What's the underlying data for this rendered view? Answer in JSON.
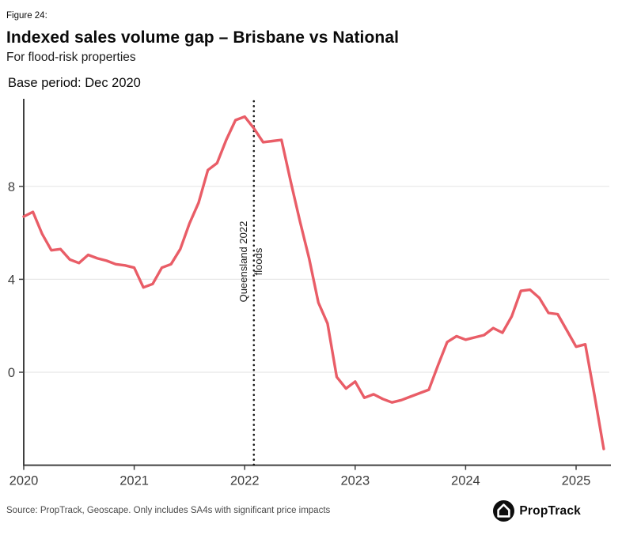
{
  "header": {
    "figure_label": "Figure 24:",
    "title": "Indexed sales volume gap – Brisbane vs National",
    "subtitle": "For flood-risk properties",
    "base_period": "Base period: Dec 2020"
  },
  "chart_data": {
    "type": "line",
    "title": "Indexed sales volume gap – Brisbane vs National",
    "subtitle": "For flood-risk properties",
    "note": "Base period: Dec 2020",
    "frequency": "monthly",
    "start_month": "2020-01",
    "end_month": "2025-04",
    "series": [
      {
        "name": "Brisbane vs National gap (flood-risk properties)",
        "color": "#e95d67",
        "values": [
          6.7,
          6.9,
          5.95,
          5.25,
          5.3,
          4.85,
          4.7,
          5.05,
          4.9,
          4.8,
          4.65,
          4.6,
          4.5,
          3.65,
          3.8,
          4.5,
          4.65,
          5.3,
          6.4,
          7.3,
          8.7,
          9.0,
          10.0,
          10.85,
          11.0,
          10.5,
          9.9,
          9.95,
          10.0,
          8.2,
          6.5,
          4.9,
          3.0,
          2.1,
          -0.2,
          -0.7,
          -0.4,
          -1.1,
          -0.95,
          -1.15,
          -1.3,
          -1.2,
          -1.05,
          -0.9,
          -0.75,
          0.3,
          1.3,
          1.55,
          1.4,
          1.5,
          1.6,
          1.9,
          1.7,
          2.4,
          3.5,
          3.55,
          3.2,
          2.55,
          2.5,
          1.8,
          1.1,
          1.2,
          -1.0,
          -3.3
        ]
      }
    ],
    "x_ticks": [
      "2020",
      "2021",
      "2022",
      "2023",
      "2024",
      "2025"
    ],
    "y_ticks": [
      0,
      4,
      8
    ],
    "ylim": [
      -4,
      11.7
    ],
    "xlim_years": [
      2020,
      2025.3
    ],
    "grid": "horizontal",
    "legend": "none",
    "annotation": {
      "label_line1": "Queensland 2022",
      "label_line2": "floods",
      "x_year": 2022.083,
      "style": "vertical-dotted-line"
    },
    "colors": {
      "line": "#e95d67",
      "axis": "#404040",
      "grid": "#e7e7e7",
      "tick_text": "#3d3d3d",
      "annotation_line": "#1a1a1a"
    }
  },
  "footer": {
    "source": "Source: PropTrack, Geoscape. Only includes SA4s with significant price impacts",
    "brand": "PropTrack"
  }
}
